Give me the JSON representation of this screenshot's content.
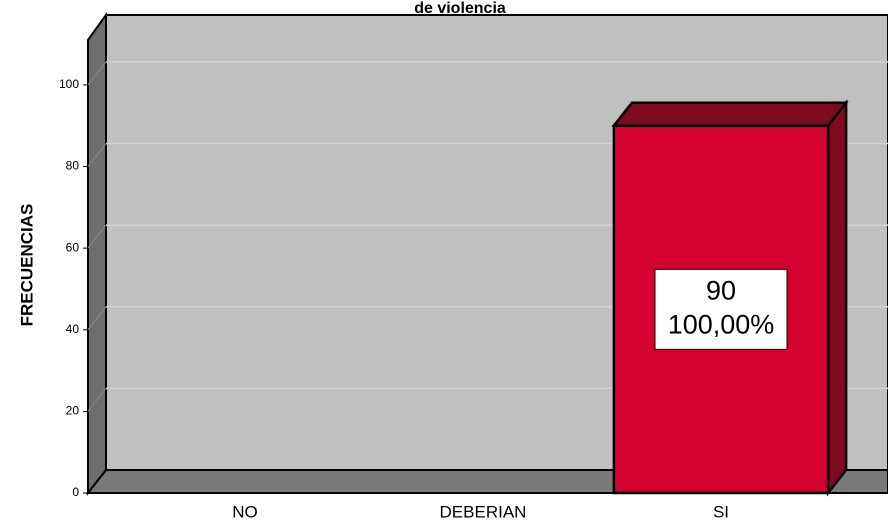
{
  "chart_data": {
    "type": "bar3d",
    "title": "de violencia",
    "ylabel": "FRECUENCIAS",
    "categories": [
      "NO",
      "DEBERIAN",
      "SI"
    ],
    "values": [
      0,
      0,
      90
    ],
    "percent_labels": [
      null,
      null,
      "100,00%"
    ],
    "color": "#d50032",
    "ylim": [
      0,
      111
    ],
    "yticks": [
      0,
      20,
      40,
      60,
      80,
      100
    ],
    "grid": true
  }
}
